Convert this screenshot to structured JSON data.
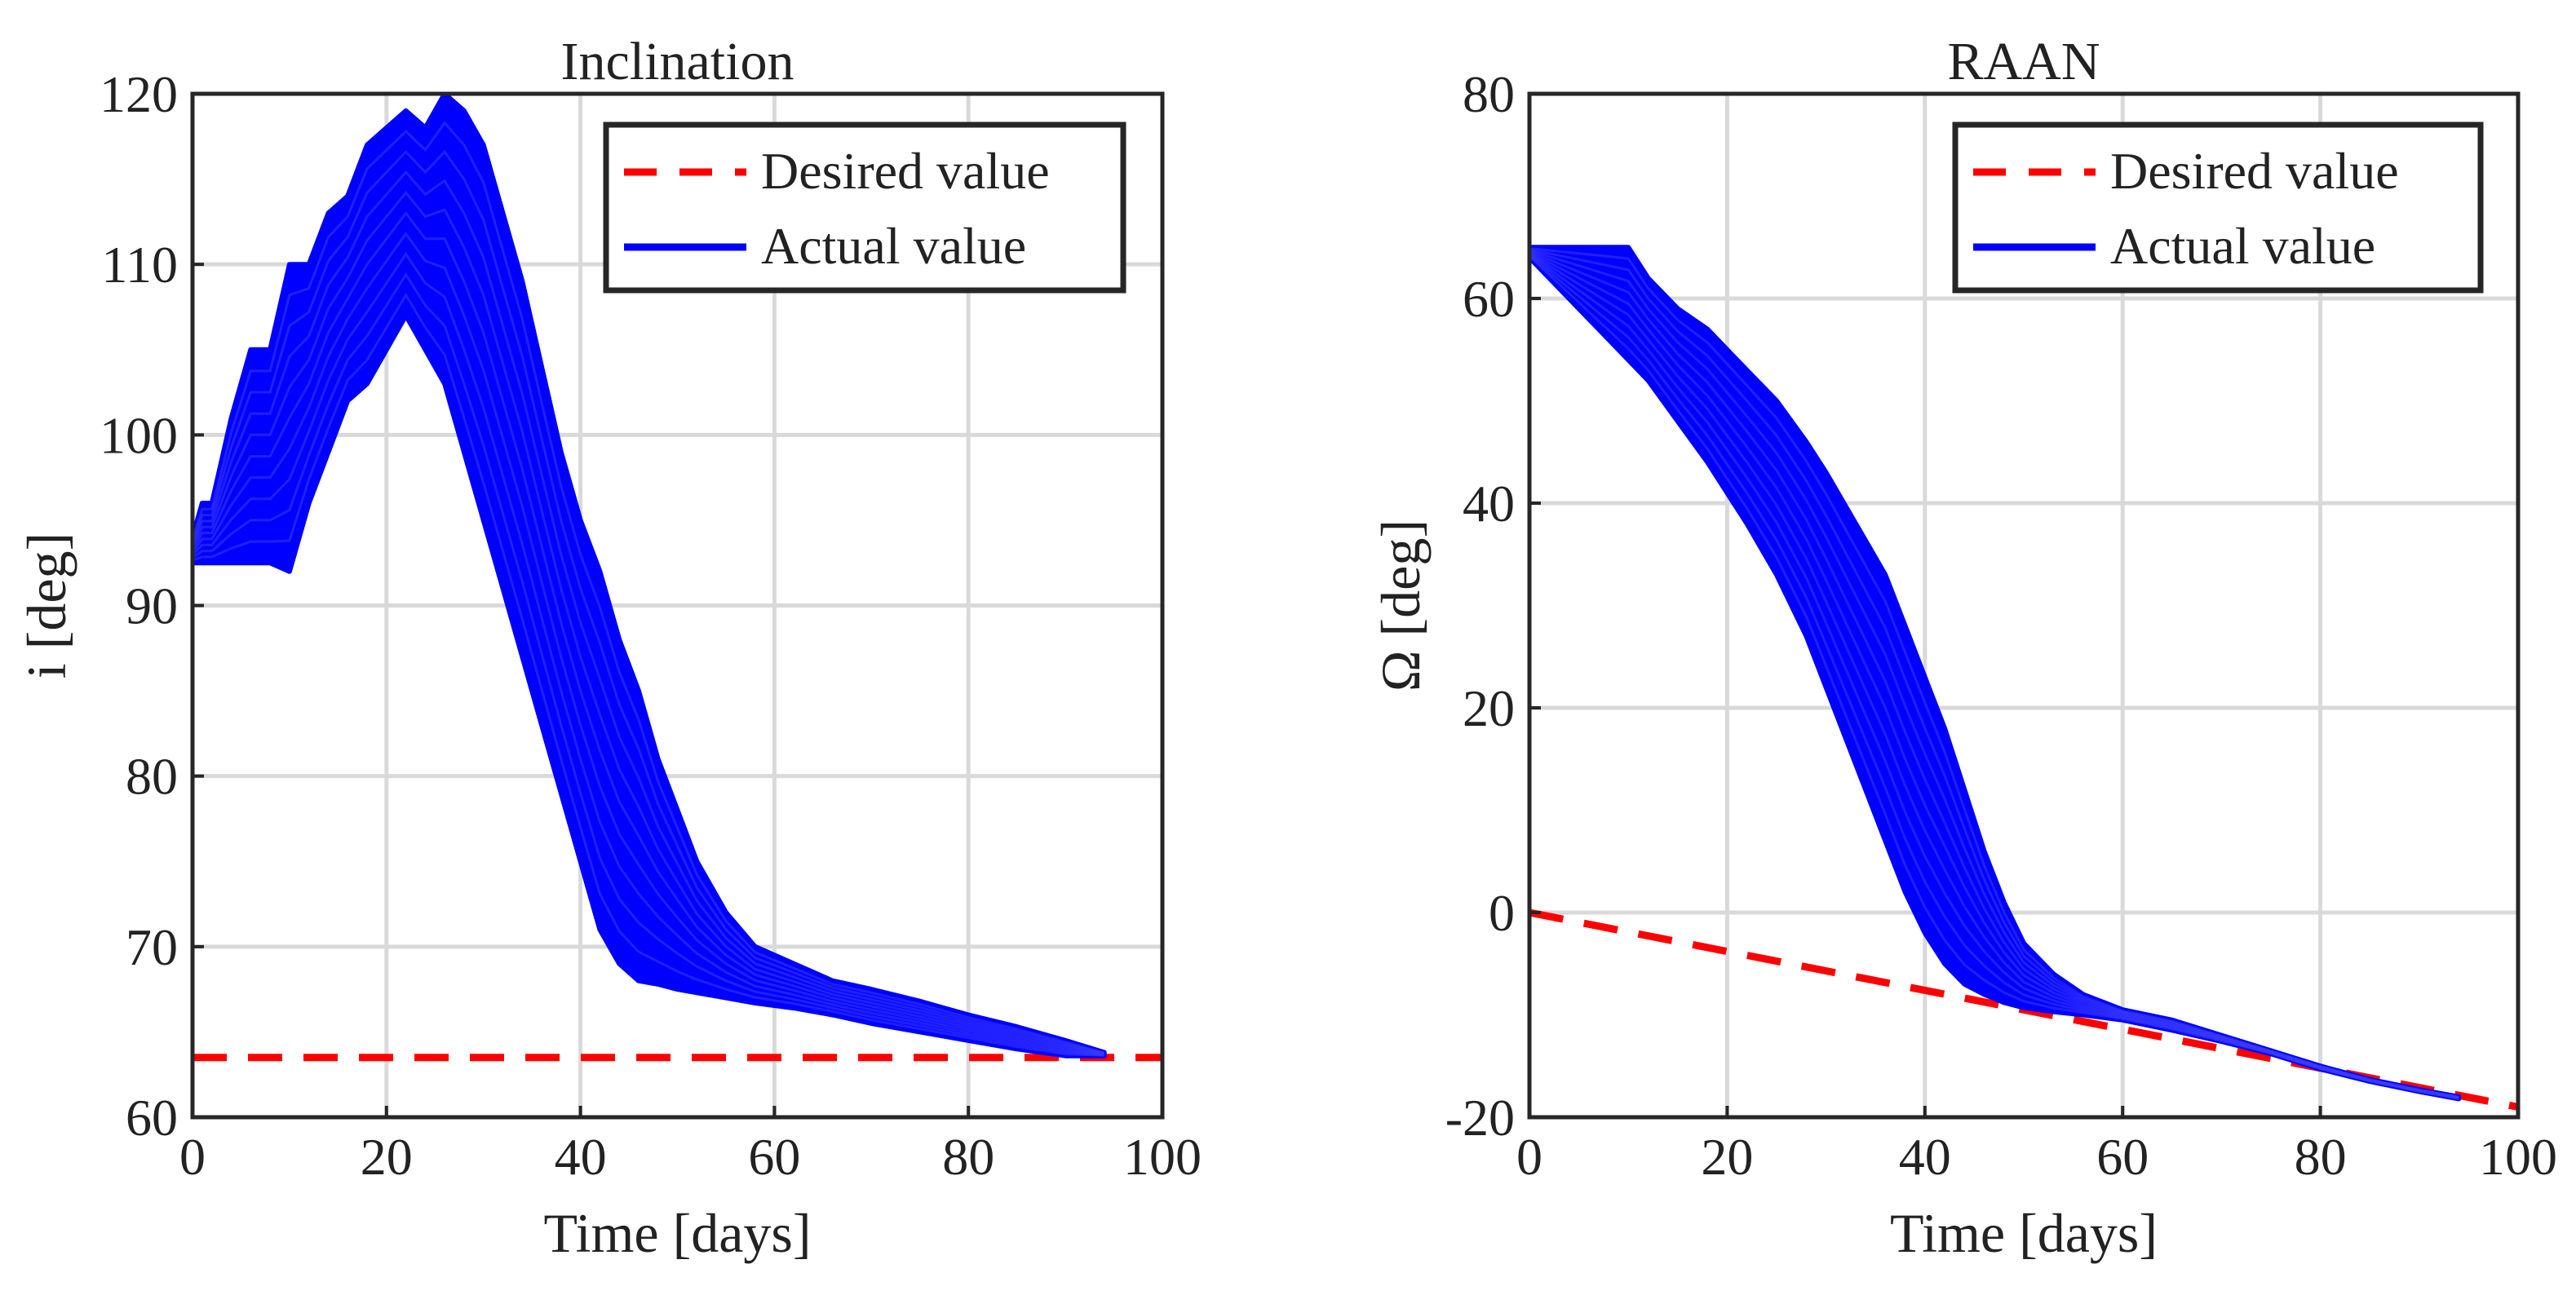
{
  "chart_data": [
    {
      "type": "line",
      "title": "Inclination",
      "xlabel": "Time [days]",
      "ylabel": "i [deg]",
      "xlim": [
        0,
        100
      ],
      "ylim": [
        60,
        120
      ],
      "xticks": [
        0,
        20,
        40,
        60,
        80,
        100
      ],
      "yticks": [
        60,
        70,
        80,
        90,
        100,
        110,
        120
      ],
      "grid": true,
      "legend": {
        "position": "top-right",
        "entries": [
          "Desired value",
          "Actual value"
        ]
      },
      "series": [
        {
          "name": "Desired value",
          "style": "dashed",
          "color": "#ff0000",
          "x": [
            0,
            100
          ],
          "y": [
            63.5,
            63.5
          ]
        },
        {
          "name": "Actual value",
          "style": "solid-band",
          "color": "#0000ff",
          "band_upper": {
            "x": [
              0,
              1,
              2,
              4,
              6,
              8,
              10,
              12,
              14,
              16,
              18,
              20,
              22,
              24,
              26,
              28,
              30,
              32,
              34,
              36,
              38,
              40,
              42,
              44,
              46,
              48,
              50,
              52,
              55,
              58,
              62,
              66,
              70,
              75,
              80,
              85,
              90,
              94
            ],
            "y": [
              94,
              96,
              96,
              101,
              105,
              105,
              110,
              110,
              113,
              114,
              117,
              118,
              119,
              118,
              120,
              119,
              117,
              113,
              109,
              104,
              99,
              95,
              92,
              88,
              85,
              81,
              78,
              75,
              72,
              70,
              69,
              68,
              67.5,
              66.8,
              66,
              65.3,
              64.5,
              63.8
            ]
          },
          "band_lower": {
            "x": [
              0,
              2,
              4,
              6,
              8,
              10,
              12,
              14,
              16,
              18,
              20,
              22,
              24,
              26,
              28,
              30,
              32,
              34,
              36,
              38,
              40,
              42,
              44,
              46,
              48,
              50,
              52,
              55,
              58,
              62,
              66,
              70,
              75,
              80,
              85,
              90,
              94
            ],
            "y": [
              92.5,
              92.5,
              92.5,
              92.5,
              92.5,
              92,
              96,
              99,
              102,
              103,
              105,
              107,
              105,
              103,
              99,
              95,
              91,
              87,
              83,
              79,
              75,
              71,
              69,
              68,
              67.8,
              67.5,
              67.3,
              67,
              66.7,
              66.4,
              66,
              65.5,
              65,
              64.5,
              64,
              63.6,
              63.6
            ]
          }
        }
      ]
    },
    {
      "type": "line",
      "title": "RAAN",
      "xlabel": "Time [days]",
      "ylabel": "Ω [deg]",
      "xlim": [
        0,
        100
      ],
      "ylim": [
        -20,
        80
      ],
      "xticks": [
        0,
        20,
        40,
        60,
        80,
        100
      ],
      "yticks": [
        -20,
        0,
        20,
        40,
        60,
        80
      ],
      "grid": true,
      "legend": {
        "position": "top-right",
        "entries": [
          "Desired value",
          "Actual value"
        ]
      },
      "series": [
        {
          "name": "Desired value",
          "style": "dashed",
          "color": "#ff0000",
          "x": [
            0,
            100
          ],
          "y": [
            0,
            -19
          ]
        },
        {
          "name": "Actual value",
          "style": "solid-band",
          "color": "#0000ff",
          "band_upper": {
            "x": [
              0,
              5,
              10,
              12,
              15,
              18,
              20,
              22,
              25,
              28,
              30,
              33,
              36,
              38,
              40,
              42,
              44,
              46,
              48,
              50,
              53,
              56,
              60,
              65,
              70,
              75,
              80,
              85,
              90,
              94
            ],
            "y": [
              65,
              65,
              65,
              62,
              59,
              57,
              55,
              53,
              50,
              46,
              43,
              38,
              33,
              28,
              23,
              18,
              12,
              6,
              1,
              -3,
              -6,
              -8,
              -9.5,
              -10.5,
              -12,
              -13.5,
              -15,
              -16.3,
              -17.3,
              -18
            ]
          },
          "band_lower": {
            "x": [
              0,
              2,
              4,
              6,
              8,
              10,
              12,
              15,
              18,
              20,
              22,
              25,
              28,
              30,
              32,
              34,
              36,
              38,
              40,
              42,
              44,
              46,
              48,
              50,
              53,
              56,
              60,
              65,
              70,
              75,
              80,
              85,
              90,
              94
            ],
            "y": [
              64,
              62,
              60,
              58,
              56,
              54,
              52,
              48,
              44,
              41,
              38,
              33,
              27,
              22,
              17,
              12,
              7,
              2,
              -2,
              -5,
              -7,
              -8,
              -8.8,
              -9.3,
              -9.7,
              -10,
              -10.5,
              -11.5,
              -12.6,
              -13.8,
              -15.3,
              -16.5,
              -17.5,
              -18.2
            ]
          }
        }
      ]
    }
  ]
}
